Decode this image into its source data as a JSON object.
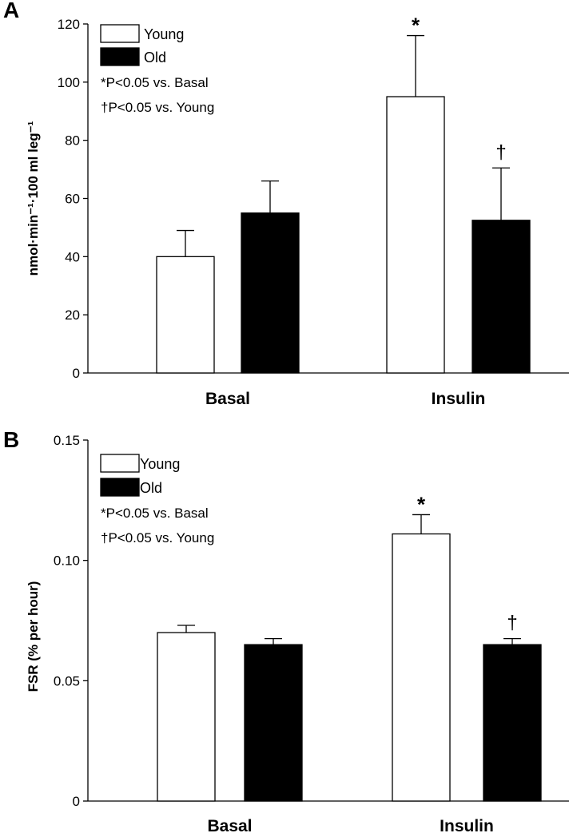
{
  "chart_data": [
    {
      "panel": "A",
      "type": "bar",
      "categories": [
        "Basal",
        "Insulin"
      ],
      "series": [
        {
          "name": "Young",
          "color": "#ffffff",
          "values": [
            40,
            95
          ],
          "errors": [
            9,
            21
          ]
        },
        {
          "name": "Old",
          "color": "#000000",
          "values": [
            55,
            52.5
          ],
          "errors": [
            11,
            18
          ]
        }
      ],
      "ylabel": "nmol·min⁻¹·100 ml leg⁻¹",
      "ylim": [
        0,
        120
      ],
      "yticks": [
        0,
        20,
        40,
        60,
        80,
        100,
        120
      ],
      "ytick_labels": [
        "0",
        "20",
        "40",
        "60",
        "80",
        "100",
        "120"
      ],
      "legend": [
        "Young",
        "Old"
      ],
      "notes": [
        "*P<0.05 vs. Basal",
        "†P<0.05 vs. Young"
      ],
      "annotations": [
        {
          "category": 1,
          "series": 0,
          "text": "*"
        },
        {
          "category": 1,
          "series": 1,
          "text": "†"
        }
      ]
    },
    {
      "panel": "B",
      "type": "bar",
      "categories": [
        "Basal",
        "Insulin"
      ],
      "series": [
        {
          "name": "Young",
          "color": "#ffffff",
          "values": [
            0.07,
            0.111
          ],
          "errors": [
            0.003,
            0.008
          ]
        },
        {
          "name": "Old",
          "color": "#000000",
          "values": [
            0.065,
            0.065
          ],
          "errors": [
            0.0025,
            0.0025
          ]
        }
      ],
      "ylabel": "FSR  (% per hour)",
      "ylim": [
        0,
        0.15
      ],
      "yticks": [
        0,
        0.05,
        0.1,
        0.15
      ],
      "ytick_labels": [
        "0",
        "0.05",
        "0.10",
        "0.15"
      ],
      "legend": [
        "Young",
        "Old"
      ],
      "notes": [
        "*P<0.05 vs. Basal",
        "†P<0.05 vs. Young"
      ],
      "annotations": [
        {
          "category": 1,
          "series": 0,
          "text": "*"
        },
        {
          "category": 1,
          "series": 1,
          "text": "†"
        }
      ]
    }
  ]
}
